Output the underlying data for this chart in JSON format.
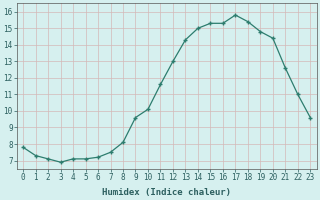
{
  "title": "",
  "xlabel": "Humidex (Indice chaleur)",
  "x": [
    0,
    1,
    2,
    3,
    4,
    5,
    6,
    7,
    8,
    9,
    10,
    11,
    12,
    13,
    14,
    15,
    16,
    17,
    18,
    19,
    20,
    21,
    22,
    23
  ],
  "y": [
    7.8,
    7.3,
    7.1,
    6.9,
    7.1,
    7.1,
    7.2,
    7.5,
    8.1,
    9.6,
    10.1,
    11.6,
    13.0,
    14.3,
    15.0,
    15.3,
    15.3,
    15.8,
    15.4,
    14.8,
    14.4,
    12.6,
    11.0,
    9.6
  ],
  "line_color": "#2d7d6e",
  "bg_color": "#d6f0ef",
  "grid_major_color": "#c8e8e5",
  "grid_minor_color": "#e0f4f2",
  "ylim": [
    6.5,
    16.5
  ],
  "xlim": [
    -0.5,
    23.5
  ],
  "yticks": [
    7,
    8,
    9,
    10,
    11,
    12,
    13,
    14,
    15,
    16
  ],
  "xticks": [
    0,
    1,
    2,
    3,
    4,
    5,
    6,
    7,
    8,
    9,
    10,
    11,
    12,
    13,
    14,
    15,
    16,
    17,
    18,
    19,
    20,
    21,
    22,
    23
  ],
  "xtick_labels": [
    "0",
    "1",
    "2",
    "3",
    "4",
    "5",
    "6",
    "7",
    "8",
    "9",
    "10",
    "11",
    "12",
    "13",
    "14",
    "15",
    "16",
    "17",
    "18",
    "19",
    "20",
    "21",
    "22",
    "23"
  ],
  "tick_color": "#2d6060",
  "label_color": "#1a3a6e",
  "tick_fontsize": 5.5,
  "xlabel_fontsize": 6.5
}
